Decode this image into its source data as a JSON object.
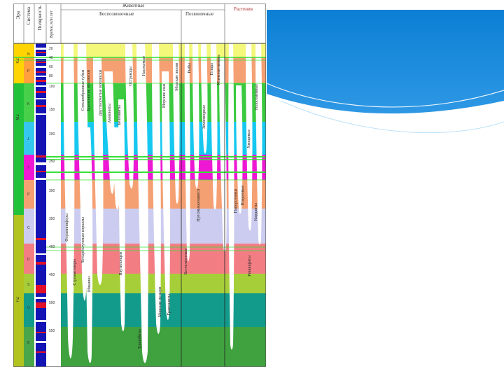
{
  "colors": {
    "panel_top": "#0b7fd4",
    "panel_bottom": "#4fb0ee",
    "band_fill": "#ffffff",
    "divider": "#222222"
  },
  "header": {
    "era_col": "Эра",
    "system_col": "Система",
    "polarity_col": "Полярность",
    "time_col": "Время, млн лет",
    "animals": "Животные",
    "invertebrates": "Беспозвоночные",
    "vertebrates": "Позвоночные",
    "plants": "Растения"
  },
  "eras": [
    {
      "label": "KZ",
      "color": "#ffd400"
    },
    {
      "label": "MZ",
      "color": "#22c33a"
    },
    {
      "label": "PZ",
      "color": "#b2c21e"
    }
  ],
  "periods": [
    "N",
    "P",
    "K",
    "J",
    "T",
    "P",
    "C",
    "D",
    "S",
    "O",
    "Є"
  ],
  "time_ticks": [
    "20",
    "40",
    "60",
    "80",
    "100",
    "150",
    "200",
    "250",
    "300",
    "350",
    "400",
    "450",
    "500",
    "550"
  ],
  "labels": [
    {
      "text": "Стеклообразные губки",
      "color": "dark"
    },
    {
      "text": "Брюхоногие моллюски",
      "color": "dark"
    },
    {
      "text": "Двустворчатые моллюски",
      "color": "dark"
    },
    {
      "text": "Аммониты",
      "color": "dark"
    },
    {
      "text": "Белемниты",
      "color": "dark"
    },
    {
      "text": "Остракоды",
      "color": "dark"
    },
    {
      "text": "Насекомые",
      "color": "dark"
    },
    {
      "text": "Морские ежи",
      "color": "dark"
    },
    {
      "text": "Морские лилии",
      "color": "dark"
    },
    {
      "text": "Рыбы",
      "color": "dark"
    },
    {
      "text": "Земноводные",
      "color": "dark"
    },
    {
      "text": "Птицы",
      "color": "dark"
    },
    {
      "text": "Млекопитающие",
      "color": "dark"
    },
    {
      "text": "Голосеменные",
      "color": "dark"
    },
    {
      "text": "Хвощевые",
      "color": "dark"
    },
    {
      "text": "Фораминиферы",
      "color": "dark"
    },
    {
      "text": "Четырёхлучевые кораллы",
      "color": "dark"
    },
    {
      "text": "Строматопоры",
      "color": "dark"
    },
    {
      "text": "Мшанки",
      "color": "dark"
    },
    {
      "text": "Наутилоидеи",
      "color": "dark"
    },
    {
      "text": "Трилобиты",
      "color": "dark"
    },
    {
      "text": "Граптолиты",
      "color": "dark"
    },
    {
      "text": "Морские пузыри",
      "color": "dark"
    },
    {
      "text": "Плауновые",
      "color": "dark"
    },
    {
      "text": "Папоротники",
      "color": "dark"
    },
    {
      "text": "Кордаиты",
      "color": "dark"
    },
    {
      "text": "Риниофиты",
      "color": "dark"
    },
    {
      "text": "Пресмыкающиеся",
      "color": "dark"
    },
    {
      "text": "Бесчелюстные",
      "color": "dark"
    }
  ]
}
